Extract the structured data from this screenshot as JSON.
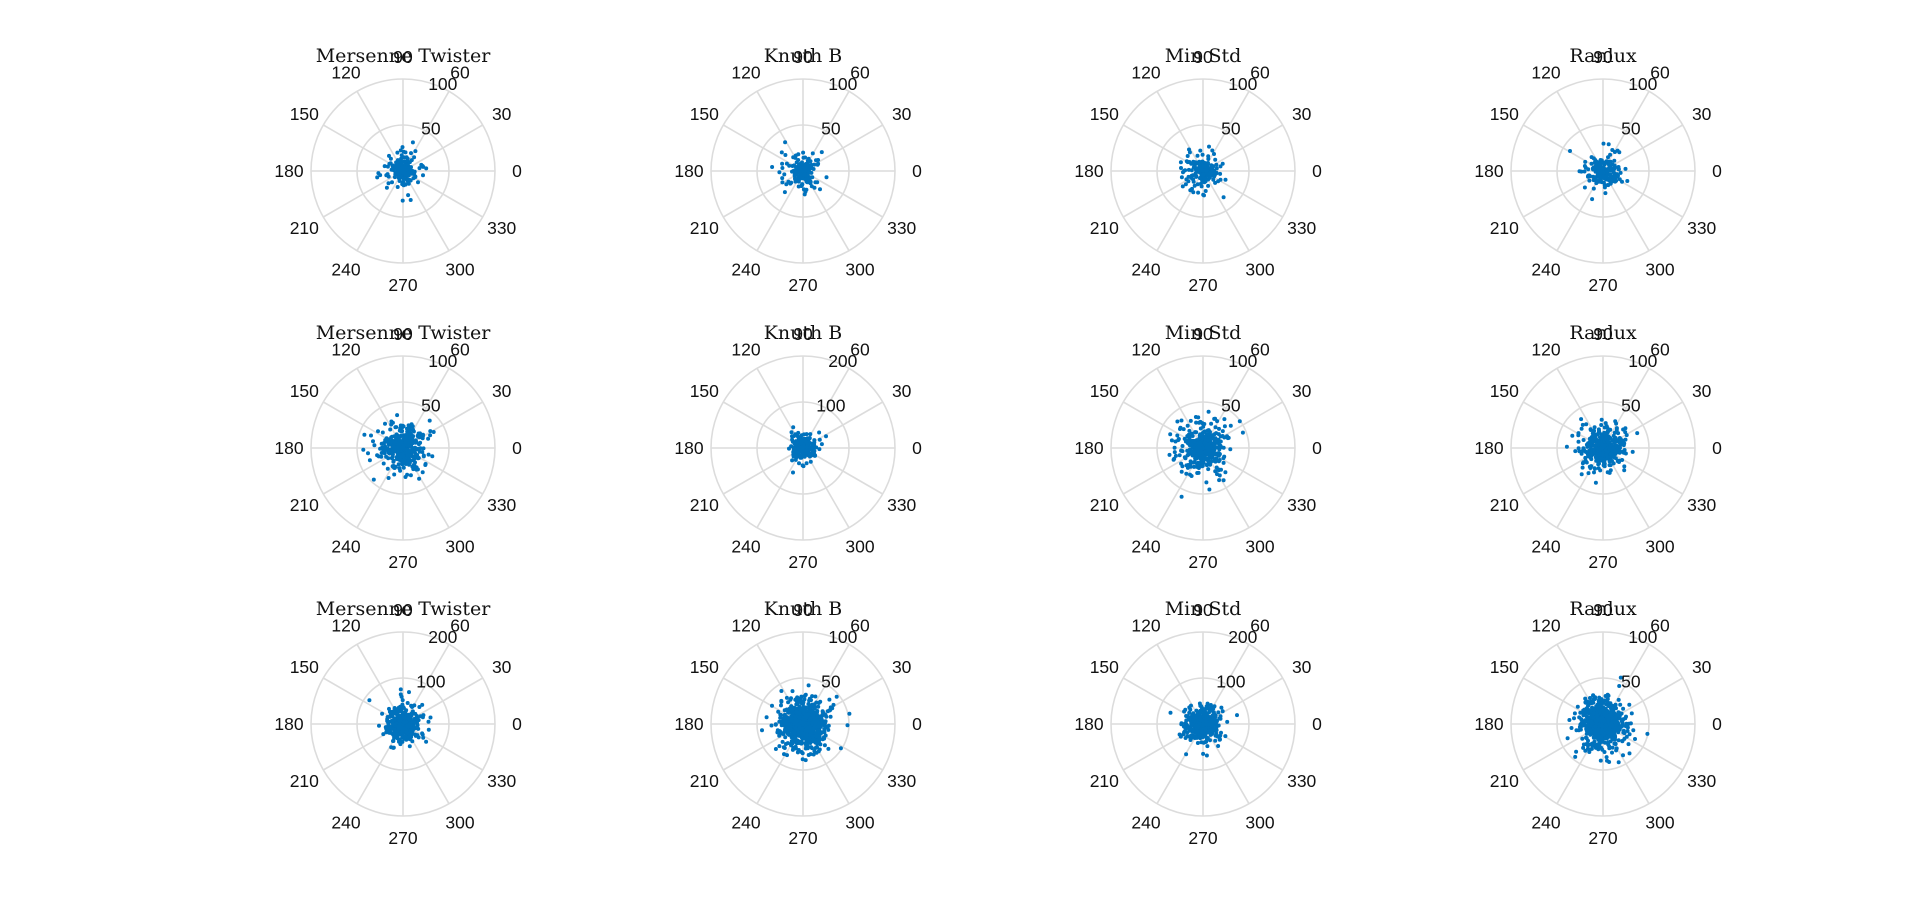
{
  "colors": {
    "marker": "#0072bd",
    "grid": "#dcdcdc",
    "text": "#111111"
  },
  "chart_data": [
    {
      "type": "scatter",
      "subtype": "polar",
      "title": "Mersenne Twister",
      "rmax": 100,
      "r_ticks": [
        50,
        100
      ],
      "theta_ticks": [
        0,
        30,
        60,
        90,
        120,
        150,
        180,
        210,
        240,
        270,
        300,
        330
      ],
      "n_points": 200,
      "r_sigma": 13
    },
    {
      "type": "scatter",
      "subtype": "polar",
      "title": "Knuth B",
      "rmax": 100,
      "r_ticks": [
        50,
        100
      ],
      "theta_ticks": [
        0,
        30,
        60,
        90,
        120,
        150,
        180,
        210,
        240,
        270,
        300,
        330
      ],
      "n_points": 200,
      "r_sigma": 13
    },
    {
      "type": "scatter",
      "subtype": "polar",
      "title": "Min Std",
      "rmax": 100,
      "r_ticks": [
        50,
        100
      ],
      "theta_ticks": [
        0,
        30,
        60,
        90,
        120,
        150,
        180,
        210,
        240,
        270,
        300,
        330
      ],
      "n_points": 200,
      "r_sigma": 13
    },
    {
      "type": "scatter",
      "subtype": "polar",
      "title": "Ranlux",
      "rmax": 100,
      "r_ticks": [
        50,
        100
      ],
      "theta_ticks": [
        0,
        30,
        60,
        90,
        120,
        150,
        180,
        210,
        240,
        270,
        300,
        330
      ],
      "n_points": 200,
      "r_sigma": 13
    },
    {
      "type": "scatter",
      "subtype": "polar",
      "title": "Mersenne Twister",
      "rmax": 100,
      "r_ticks": [
        50,
        100
      ],
      "theta_ticks": [
        0,
        30,
        60,
        90,
        120,
        150,
        180,
        210,
        240,
        270,
        300,
        330
      ],
      "n_points": 500,
      "r_sigma": 15
    },
    {
      "type": "scatter",
      "subtype": "polar",
      "title": "Knuth B",
      "rmax": 200,
      "r_ticks": [
        100,
        200
      ],
      "theta_ticks": [
        0,
        30,
        60,
        90,
        120,
        150,
        180,
        210,
        240,
        270,
        300,
        330
      ],
      "n_points": 300,
      "r_sigma": 18
    },
    {
      "type": "scatter",
      "subtype": "polar",
      "title": "Min Std",
      "rmax": 100,
      "r_ticks": [
        50,
        100
      ],
      "theta_ticks": [
        0,
        30,
        60,
        90,
        120,
        150,
        180,
        210,
        240,
        270,
        300,
        330
      ],
      "n_points": 500,
      "r_sigma": 16
    },
    {
      "type": "scatter",
      "subtype": "polar",
      "title": "Ranlux",
      "rmax": 100,
      "r_ticks": [
        50,
        100
      ],
      "theta_ticks": [
        0,
        30,
        60,
        90,
        120,
        150,
        180,
        210,
        240,
        270,
        300,
        330
      ],
      "n_points": 500,
      "r_sigma": 15
    },
    {
      "type": "scatter",
      "subtype": "polar",
      "title": "Mersenne Twister",
      "rmax": 200,
      "r_ticks": [
        100,
        200
      ],
      "theta_ticks": [
        0,
        30,
        60,
        90,
        120,
        150,
        180,
        210,
        240,
        270,
        300,
        330
      ],
      "n_points": 500,
      "r_sigma": 24
    },
    {
      "type": "scatter",
      "subtype": "polar",
      "title": "Knuth B",
      "rmax": 100,
      "r_ticks": [
        50,
        100
      ],
      "theta_ticks": [
        0,
        30,
        60,
        90,
        120,
        150,
        180,
        210,
        240,
        270,
        300,
        330
      ],
      "n_points": 1000,
      "r_sigma": 16
    },
    {
      "type": "scatter",
      "subtype": "polar",
      "title": "Min Std",
      "rmax": 200,
      "r_ticks": [
        100,
        200
      ],
      "theta_ticks": [
        0,
        30,
        60,
        90,
        120,
        150,
        180,
        210,
        240,
        270,
        300,
        330
      ],
      "n_points": 500,
      "r_sigma": 24
    },
    {
      "type": "scatter",
      "subtype": "polar",
      "title": "Ranlux",
      "rmax": 100,
      "r_ticks": [
        50,
        100
      ],
      "theta_ticks": [
        0,
        30,
        60,
        90,
        120,
        150,
        180,
        210,
        240,
        270,
        300,
        330
      ],
      "n_points": 1000,
      "r_sigma": 15
    }
  ]
}
